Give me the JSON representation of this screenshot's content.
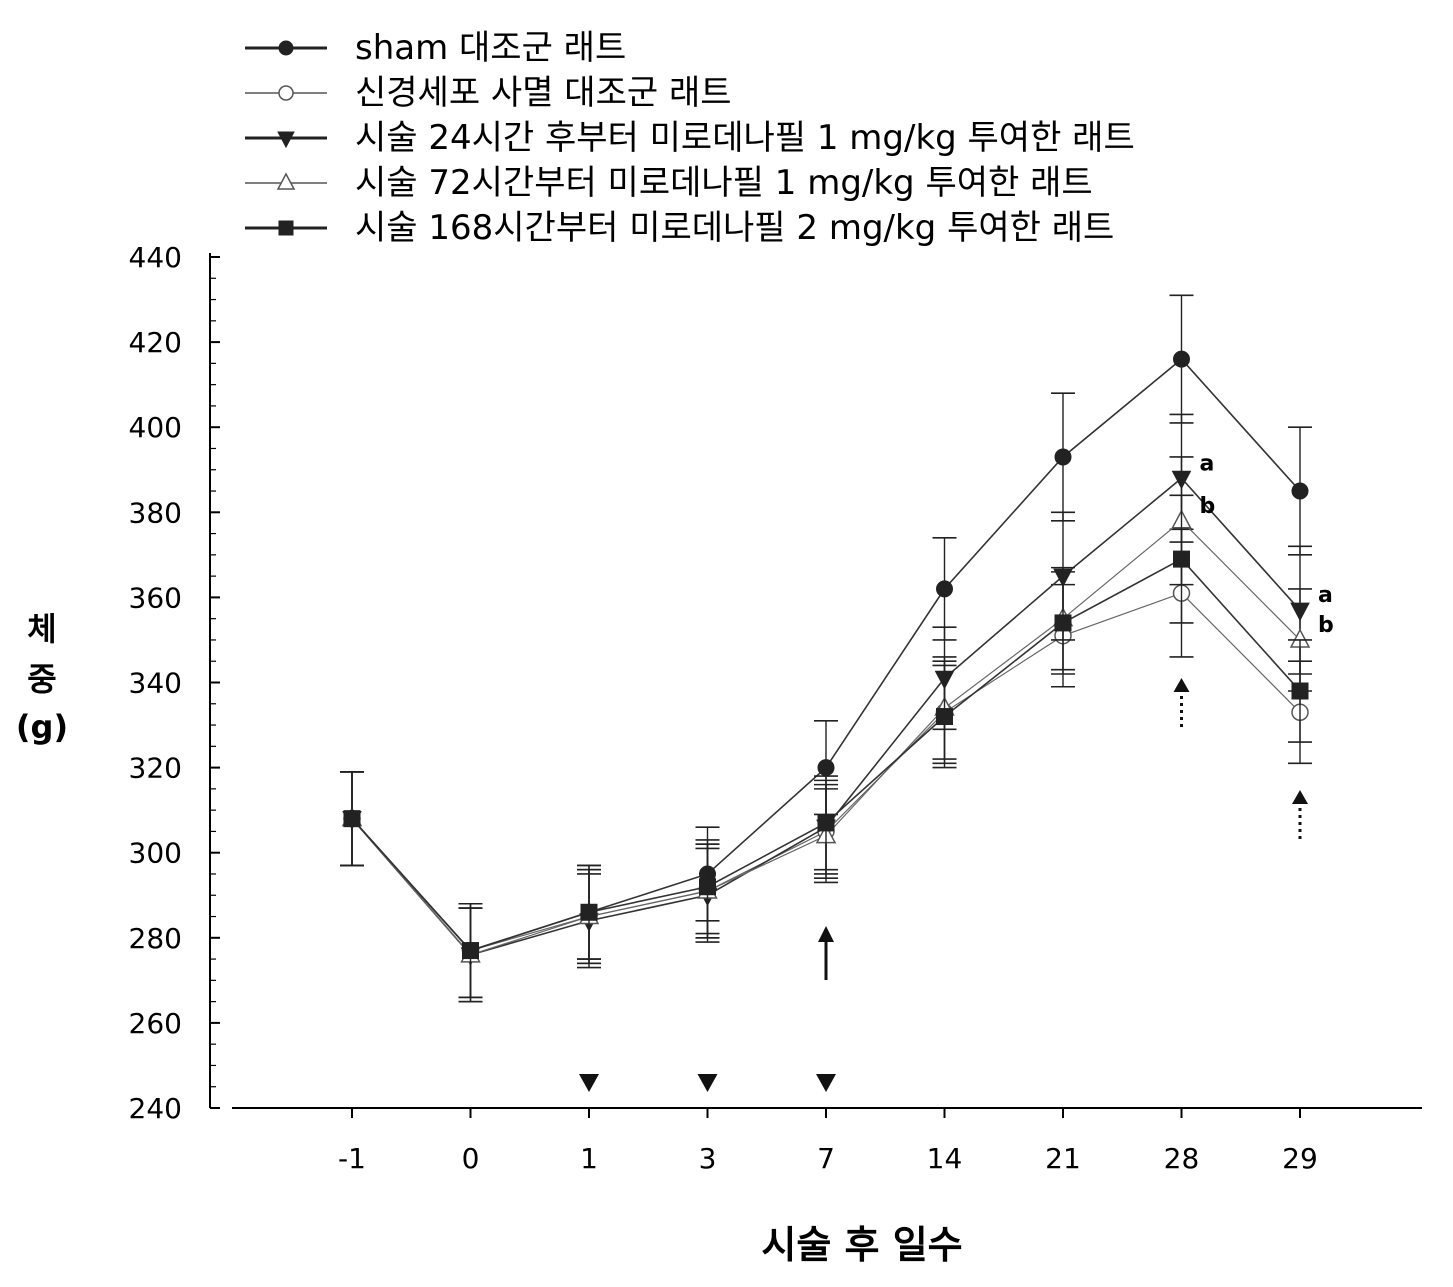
{
  "chart_data": {
    "type": "line",
    "title": "",
    "xlabel": "시술 후 일수",
    "ylabel_lines": [
      "체",
      "중",
      "(g)"
    ],
    "x_categories": [
      "-1",
      "0",
      "1",
      "3",
      "7",
      "14",
      "21",
      "28",
      "29"
    ],
    "ylim": [
      240,
      440
    ],
    "y_ticks": [
      "240",
      "260",
      "280",
      "300",
      "320",
      "340",
      "360",
      "380",
      "400",
      "420",
      "440"
    ],
    "legend_position": "top",
    "series": [
      {
        "name": "sham 대조군 래트",
        "marker": "filled-circle",
        "values": [
          308,
          277,
          286,
          295,
          320,
          362,
          393,
          416,
          385
        ],
        "errors": [
          11,
          11,
          11,
          11,
          11,
          12,
          15,
          15,
          15
        ]
      },
      {
        "name": "신경세포 사멸 대조군 래트",
        "marker": "open-circle",
        "values": [
          308,
          277,
          285,
          291,
          305,
          333,
          351,
          361,
          333
        ],
        "errors": [
          11,
          11,
          11,
          11,
          11,
          12,
          12,
          15,
          12
        ]
      },
      {
        "name": "시술 24시간 후부터 미로데나필 1 mg/kg 투여한 래트",
        "marker": "filled-triangle-down",
        "values": [
          308,
          276,
          284,
          290,
          306,
          341,
          365,
          388,
          357
        ],
        "errors": [
          11,
          11,
          11,
          11,
          11,
          12,
          15,
          15,
          15
        ]
      },
      {
        "name": "시술 72시간부터 미로데나필 1 mg/kg 투여한 래트",
        "marker": "open-triangle-up",
        "values": [
          308,
          276,
          285,
          291,
          304,
          334,
          355,
          378,
          350
        ],
        "errors": [
          11,
          11,
          11,
          11,
          11,
          12,
          12,
          15,
          12
        ]
      },
      {
        "name": "시술 168시간부터 미로데나필 2 mg/kg 투여한 래트",
        "marker": "filled-square",
        "values": [
          308,
          277,
          286,
          292,
          307,
          332,
          354,
          369,
          338
        ],
        "errors": [
          11,
          11,
          11,
          11,
          11,
          12,
          12,
          15,
          12
        ]
      }
    ],
    "annotations": {
      "letters": [
        {
          "x": "28",
          "y": 388,
          "text": "a"
        },
        {
          "x": "28",
          "y": 378,
          "text": "b"
        },
        {
          "x": "29",
          "y": 357,
          "text": "a"
        },
        {
          "x": "29",
          "y": 350,
          "text": "b"
        }
      ],
      "dosing_markers_x": [
        "1",
        "3",
        "7"
      ],
      "solid_arrow_x": "7",
      "dotted_arrows_x": [
        "28",
        "29"
      ]
    }
  }
}
